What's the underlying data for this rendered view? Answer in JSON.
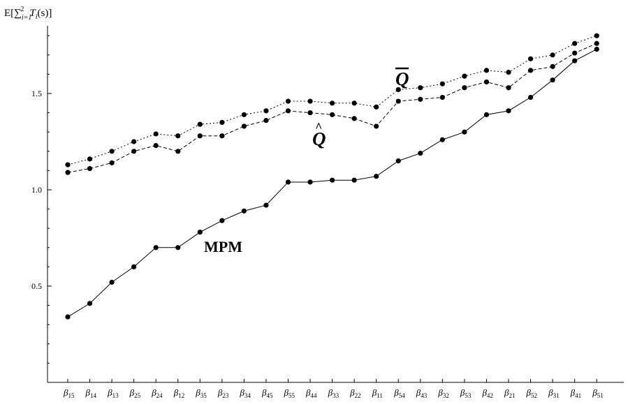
{
  "chart_data": {
    "type": "line",
    "title": "",
    "ylabel": "E[∑_{i=1}^{2} T_i(s)]",
    "ylabel_parts": {
      "prefix": "E[",
      "sum": "∑",
      "sub": "i=1",
      "sup": "2",
      "var": "T",
      "var_sub": "i",
      "suffix": "(s)]"
    },
    "xlabel": "",
    "ylim": [
      0.0,
      1.85
    ],
    "yticks": [
      {
        "value": 0.5,
        "label": "0.5"
      },
      {
        "value": 1.0,
        "label": "1.0"
      },
      {
        "value": 1.5,
        "label": "1.5"
      }
    ],
    "categories": [
      "15",
      "14",
      "13",
      "25",
      "24",
      "12",
      "35",
      "23",
      "34",
      "45",
      "55",
      "44",
      "33",
      "22",
      "11",
      "54",
      "43",
      "32",
      "53",
      "42",
      "21",
      "52",
      "31",
      "41",
      "51"
    ],
    "category_symbol": "β",
    "series": [
      {
        "name": "Q̄",
        "dash": "dotted",
        "values": [
          1.13,
          1.16,
          1.2,
          1.25,
          1.29,
          1.28,
          1.34,
          1.35,
          1.39,
          1.41,
          1.46,
          1.46,
          1.45,
          1.45,
          1.43,
          1.52,
          1.53,
          1.55,
          1.59,
          1.62,
          1.61,
          1.68,
          1.7,
          1.76,
          1.8
        ]
      },
      {
        "name": "Q̂",
        "dash": "dashed",
        "values": [
          1.09,
          1.11,
          1.14,
          1.2,
          1.23,
          1.2,
          1.28,
          1.28,
          1.33,
          1.36,
          1.41,
          1.4,
          1.39,
          1.37,
          1.33,
          1.46,
          1.47,
          1.48,
          1.53,
          1.56,
          1.53,
          1.62,
          1.64,
          1.71,
          1.76
        ]
      },
      {
        "name": "MPM",
        "dash": "solid",
        "values": [
          0.34,
          0.41,
          0.52,
          0.6,
          0.7,
          0.7,
          0.78,
          0.84,
          0.89,
          0.92,
          1.04,
          1.04,
          1.05,
          1.05,
          1.07,
          1.15,
          1.19,
          1.26,
          1.3,
          1.39,
          1.41,
          1.48,
          1.57,
          1.67,
          1.73
        ]
      }
    ],
    "annotations": {
      "qbar": "Q",
      "qhat": "Q",
      "mpm": "MPM"
    },
    "grid": false,
    "legend": "none"
  }
}
